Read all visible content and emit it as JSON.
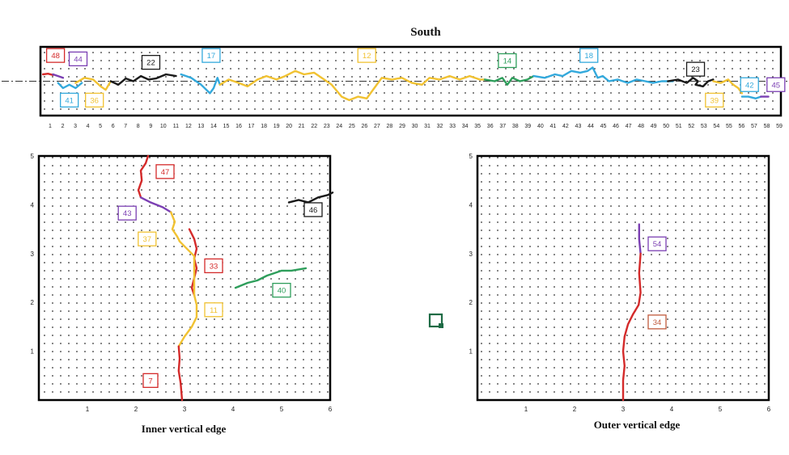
{
  "titles": {
    "top": "South",
    "inner": "Inner  vertical edge",
    "outer": "Outer  vertical edge"
  },
  "colors": {
    "red": "#d42a2a",
    "purple": "#7b3fb3",
    "yellow": "#f1c232",
    "cyan": "#33a9dc",
    "black": "#1a1a1a",
    "green": "#2e9e5b",
    "brown": "#c05a3c",
    "marker": "#1e6b45"
  },
  "chart_data": [
    {
      "type": "line",
      "panel": "south",
      "title": "South",
      "x_ticks": [
        "1",
        "2",
        "3",
        "4",
        "5",
        "6",
        "7",
        "8",
        "9",
        "10",
        "11",
        "12",
        "13",
        "14",
        "15",
        "16",
        "17",
        "18",
        "19",
        "20",
        "21",
        "22",
        "23",
        "24",
        "25",
        "26",
        "27",
        "28",
        "29",
        "30",
        "31",
        "32",
        "33",
        "34",
        "35",
        "36",
        "37",
        "38",
        "39",
        "40",
        "41",
        "42",
        "43",
        "44",
        "45",
        "46",
        "47",
        "48",
        "49",
        "50",
        "51",
        "52",
        "53",
        "54",
        "55",
        "56",
        "57",
        "58",
        "59"
      ],
      "xlim": [
        0,
        59
      ],
      "ylim": [
        -1,
        1
      ],
      "grid": true,
      "reference_line": "dash-dot at y = 0",
      "labels": [
        {
          "text": "48",
          "x": 1.2,
          "y": 0.75,
          "color": "red"
        },
        {
          "text": "44",
          "x": 3.0,
          "y": 0.65,
          "color": "purple"
        },
        {
          "text": "41",
          "x": 2.3,
          "y": -0.55,
          "color": "cyan"
        },
        {
          "text": "36",
          "x": 4.3,
          "y": -0.55,
          "color": "yellow"
        },
        {
          "text": "22",
          "x": 8.8,
          "y": 0.55,
          "color": "black"
        },
        {
          "text": "17",
          "x": 13.6,
          "y": 0.75,
          "color": "cyan"
        },
        {
          "text": "12",
          "x": 26.0,
          "y": 0.75,
          "color": "yellow"
        },
        {
          "text": "14",
          "x": 37.2,
          "y": 0.6,
          "color": "green"
        },
        {
          "text": "18",
          "x": 43.7,
          "y": 0.75,
          "color": "cyan"
        },
        {
          "text": "23",
          "x": 52.2,
          "y": 0.35,
          "color": "black"
        },
        {
          "text": "39",
          "x": 53.7,
          "y": -0.55,
          "color": "yellow"
        },
        {
          "text": "42",
          "x": 56.5,
          "y": -0.1,
          "color": "cyan"
        },
        {
          "text": "45",
          "x": 58.6,
          "y": -0.1,
          "color": "purple"
        }
      ],
      "series": [
        {
          "label": "48",
          "color": "red",
          "points": [
            [
              0.2,
              0.2
            ],
            [
              0.6,
              0.22
            ],
            [
              1.0,
              0.18
            ]
          ]
        },
        {
          "label": "44",
          "color": "purple",
          "points": [
            [
              1.0,
              0.2
            ],
            [
              1.4,
              0.15
            ],
            [
              1.8,
              0.1
            ]
          ]
        },
        {
          "label": "41",
          "color": "cyan",
          "points": [
            [
              1.4,
              -0.05
            ],
            [
              1.8,
              -0.2
            ],
            [
              2.3,
              -0.1
            ],
            [
              2.8,
              -0.2
            ],
            [
              3.3,
              -0.05
            ]
          ]
        },
        {
          "label": "36",
          "color": "yellow",
          "points": [
            [
              2.8,
              -0.05
            ],
            [
              3.5,
              0.1
            ],
            [
              4.2,
              0.05
            ],
            [
              4.8,
              -0.15
            ],
            [
              5.2,
              -0.25
            ],
            [
              5.6,
              0.0
            ]
          ]
        },
        {
          "label": "22",
          "color": "black",
          "points": [
            [
              5.6,
              0.0
            ],
            [
              6.2,
              -0.1
            ],
            [
              6.8,
              0.08
            ],
            [
              7.4,
              0.0
            ],
            [
              8.0,
              0.15
            ],
            [
              8.6,
              0.05
            ],
            [
              9.2,
              0.08
            ],
            [
              10.0,
              0.2
            ],
            [
              10.8,
              0.15
            ]
          ]
        },
        {
          "label": "17",
          "color": "cyan",
          "points": [
            [
              11.2,
              0.2
            ],
            [
              12.0,
              0.1
            ],
            [
              12.8,
              -0.1
            ],
            [
              13.5,
              -0.35
            ],
            [
              13.8,
              -0.2
            ],
            [
              14.1,
              0.1
            ],
            [
              14.3,
              -0.1
            ]
          ]
        },
        {
          "label": "12",
          "color": "yellow",
          "points": [
            [
              14.3,
              -0.1
            ],
            [
              15.0,
              0.05
            ],
            [
              15.8,
              -0.05
            ],
            [
              16.5,
              -0.15
            ],
            [
              17.3,
              0.05
            ],
            [
              18.0,
              0.15
            ],
            [
              18.8,
              0.05
            ],
            [
              19.5,
              0.15
            ],
            [
              20.3,
              0.3
            ],
            [
              21.0,
              0.2
            ],
            [
              21.8,
              0.25
            ],
            [
              22.6,
              0.05
            ],
            [
              23.2,
              -0.1
            ],
            [
              24.0,
              -0.45
            ],
            [
              24.6,
              -0.55
            ],
            [
              25.3,
              -0.45
            ],
            [
              26.0,
              -0.5
            ],
            [
              26.6,
              -0.2
            ],
            [
              27.2,
              0.1
            ],
            [
              28.0,
              0.05
            ],
            [
              28.8,
              0.1
            ],
            [
              29.6,
              -0.05
            ],
            [
              30.4,
              -0.1
            ],
            [
              31.0,
              0.1
            ],
            [
              31.8,
              0.05
            ],
            [
              32.6,
              0.15
            ],
            [
              33.4,
              0.05
            ],
            [
              34.2,
              0.15
            ],
            [
              35.0,
              0.05
            ],
            [
              35.4,
              0.05
            ]
          ]
        },
        {
          "label": "14",
          "color": "green",
          "points": [
            [
              35.4,
              0.05
            ],
            [
              36.2,
              0.0
            ],
            [
              36.8,
              0.1
            ],
            [
              37.2,
              -0.1
            ],
            [
              37.6,
              0.1
            ],
            [
              38.2,
              0.0
            ],
            [
              38.8,
              0.05
            ],
            [
              39.3,
              0.15
            ]
          ]
        },
        {
          "label": "18",
          "color": "cyan",
          "points": [
            [
              39.3,
              0.15
            ],
            [
              40.2,
              0.1
            ],
            [
              41.0,
              0.2
            ],
            [
              41.6,
              0.15
            ],
            [
              42.3,
              0.3
            ],
            [
              43.0,
              0.25
            ],
            [
              43.6,
              0.3
            ],
            [
              44.0,
              0.4
            ],
            [
              44.4,
              0.1
            ],
            [
              44.8,
              0.15
            ],
            [
              45.3,
              0.0
            ],
            [
              46.0,
              0.05
            ],
            [
              46.8,
              -0.05
            ],
            [
              47.5,
              0.05
            ],
            [
              48.2,
              0.0
            ],
            [
              48.8,
              -0.05
            ],
            [
              49.5,
              0.0
            ],
            [
              50.4,
              0.0
            ]
          ]
        },
        {
          "label": "23",
          "color": "black",
          "points": [
            [
              50.0,
              0.0
            ],
            [
              50.8,
              0.05
            ],
            [
              51.5,
              -0.05
            ],
            [
              52.0,
              0.1
            ],
            [
              52.4,
              0.0
            ],
            [
              52.2,
              -0.1
            ],
            [
              52.8,
              -0.15
            ],
            [
              53.2,
              0.0
            ],
            [
              53.6,
              0.05
            ]
          ]
        },
        {
          "label": "39",
          "color": "yellow",
          "points": [
            [
              53.6,
              0.0
            ],
            [
              54.2,
              -0.05
            ],
            [
              54.8,
              0.05
            ],
            [
              55.2,
              -0.1
            ],
            [
              55.6,
              -0.2
            ],
            [
              55.9,
              -0.35
            ]
          ]
        },
        {
          "label": "42",
          "color": "cyan",
          "points": [
            [
              55.9,
              -0.45
            ],
            [
              56.4,
              -0.45
            ],
            [
              57.0,
              -0.5
            ],
            [
              57.4,
              -0.45
            ]
          ]
        },
        {
          "label": "45",
          "color": "purple",
          "points": [
            [
              57.4,
              -0.45
            ],
            [
              58.0,
              -0.45
            ]
          ]
        }
      ]
    },
    {
      "type": "line",
      "panel": "inner",
      "title": "Inner  vertical edge",
      "x_ticks": [
        "1",
        "2",
        "3",
        "4",
        "5",
        "6"
      ],
      "y_ticks": [
        "1",
        "2",
        "3",
        "4",
        "5"
      ],
      "xlim": [
        0,
        6
      ],
      "ylim": [
        0,
        5
      ],
      "grid": true,
      "labels": [
        {
          "text": "47",
          "x": 2.6,
          "y": 4.68,
          "color": "red"
        },
        {
          "text": "43",
          "x": 1.82,
          "y": 3.83,
          "color": "purple"
        },
        {
          "text": "37",
          "x": 2.23,
          "y": 3.3,
          "color": "yellow"
        },
        {
          "text": "33",
          "x": 3.6,
          "y": 2.75,
          "color": "red"
        },
        {
          "text": "11",
          "x": 3.6,
          "y": 1.85,
          "color": "yellow"
        },
        {
          "text": "40",
          "x": 5.0,
          "y": 2.25,
          "color": "green"
        },
        {
          "text": "46",
          "x": 5.65,
          "y": 3.9,
          "color": "black"
        },
        {
          "text": "7",
          "x": 2.3,
          "y": 0.4,
          "color": "red"
        }
      ],
      "series": [
        {
          "label": "47",
          "color": "red",
          "points": [
            [
              2.25,
              5.0
            ],
            [
              2.2,
              4.85
            ],
            [
              2.1,
              4.7
            ],
            [
              2.12,
              4.5
            ],
            [
              2.05,
              4.3
            ],
            [
              2.1,
              4.15
            ]
          ]
        },
        {
          "label": "43",
          "color": "purple",
          "points": [
            [
              2.1,
              4.15
            ],
            [
              2.3,
              4.05
            ],
            [
              2.55,
              3.95
            ],
            [
              2.72,
              3.85
            ]
          ]
        },
        {
          "label": "37",
          "color": "yellow",
          "points": [
            [
              2.72,
              3.85
            ],
            [
              2.8,
              3.65
            ],
            [
              2.75,
              3.5
            ],
            [
              2.85,
              3.35
            ],
            [
              2.9,
              3.25
            ]
          ]
        },
        {
          "label": "33",
          "color": "red",
          "points": [
            [
              3.1,
              3.5
            ],
            [
              3.2,
              3.3
            ],
            [
              3.25,
              3.1
            ],
            [
              3.2,
              2.9
            ],
            [
              3.25,
              2.7
            ],
            [
              3.2,
              2.5
            ],
            [
              3.15,
              2.3
            ],
            [
              3.2,
              2.15
            ]
          ]
        },
        {
          "label": "11",
          "color": "yellow",
          "points": [
            [
              2.9,
              3.25
            ],
            [
              3.05,
              3.1
            ],
            [
              3.2,
              2.95
            ],
            [
              3.2,
              2.15
            ],
            [
              3.25,
              1.95
            ],
            [
              3.25,
              1.7
            ],
            [
              3.15,
              1.5
            ],
            [
              3.0,
              1.3
            ],
            [
              2.88,
              1.1
            ]
          ]
        },
        {
          "label": "7",
          "color": "red",
          "points": [
            [
              2.88,
              1.1
            ],
            [
              2.9,
              0.85
            ],
            [
              2.88,
              0.6
            ],
            [
              2.92,
              0.35
            ],
            [
              2.95,
              0.0
            ]
          ]
        },
        {
          "label": "40",
          "color": "green",
          "points": [
            [
              4.05,
              2.3
            ],
            [
              4.3,
              2.4
            ],
            [
              4.5,
              2.45
            ],
            [
              4.7,
              2.55
            ],
            [
              4.85,
              2.6
            ],
            [
              5.0,
              2.65
            ],
            [
              5.2,
              2.65
            ],
            [
              5.5,
              2.7
            ]
          ]
        },
        {
          "label": "46",
          "color": "black",
          "points": [
            [
              5.15,
              4.05
            ],
            [
              5.35,
              4.1
            ],
            [
              5.55,
              4.05
            ],
            [
              5.75,
              4.15
            ],
            [
              5.95,
              4.2
            ],
            [
              6.05,
              4.25
            ]
          ]
        }
      ]
    },
    {
      "type": "line",
      "panel": "outer",
      "title": "Outer  vertical edge",
      "x_ticks": [
        "1",
        "2",
        "3",
        "4",
        "5",
        "6"
      ],
      "y_ticks": [
        "1",
        "2",
        "3",
        "4",
        "5"
      ],
      "xlim": [
        0,
        6
      ],
      "ylim": [
        0,
        5
      ],
      "grid": true,
      "labels": [
        {
          "text": "54",
          "x": 3.7,
          "y": 3.2,
          "color": "purple"
        },
        {
          "text": "34",
          "x": 3.7,
          "y": 1.6,
          "color": "brown"
        }
      ],
      "series": [
        {
          "label": "54",
          "color": "purple",
          "points": [
            [
              3.33,
              3.6
            ],
            [
              3.33,
              3.3
            ],
            [
              3.36,
              3.0
            ]
          ]
        },
        {
          "label": "34",
          "color": "red",
          "points": [
            [
              3.36,
              3.0
            ],
            [
              3.33,
              2.6
            ],
            [
              3.36,
              2.2
            ],
            [
              3.32,
              1.95
            ],
            [
              3.2,
              1.75
            ],
            [
              3.1,
              1.55
            ],
            [
              3.03,
              1.3
            ],
            [
              3.0,
              1.0
            ],
            [
              3.03,
              0.7
            ],
            [
              3.0,
              0.4
            ],
            [
              3.0,
              0.0
            ]
          ]
        }
      ]
    }
  ]
}
